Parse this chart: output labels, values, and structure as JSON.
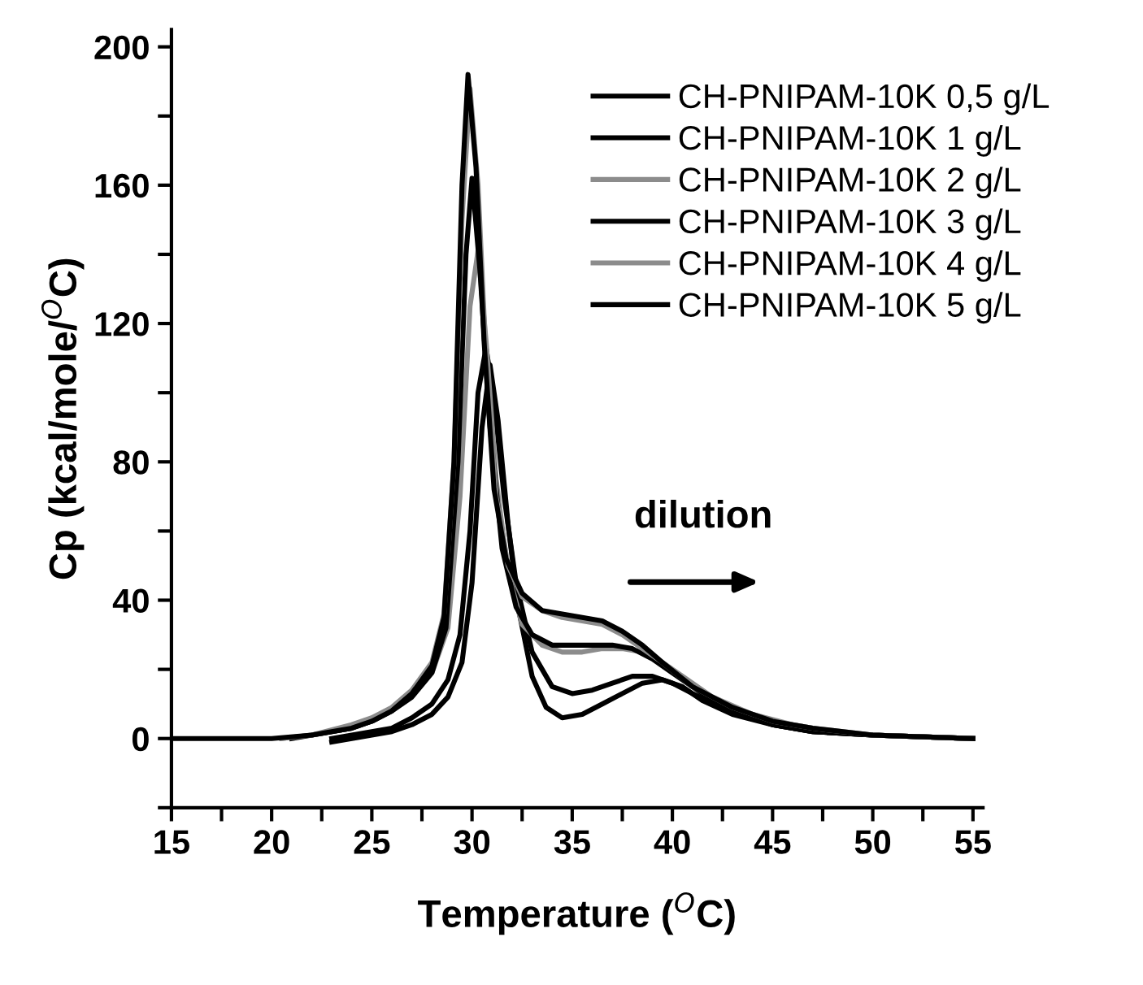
{
  "chart_data": {
    "type": "line",
    "xlabel": "Temperature ($^{O}$C)",
    "ylabel": "Cp (kcal/mole/$^{O}$C)",
    "xlim": [
      15,
      55.5
    ],
    "ylim": [
      -20,
      205
    ],
    "xticks": [
      15,
      {
        "value": 17.5,
        "label": null
      },
      20,
      {
        "value": 22.5,
        "label": null
      },
      25,
      {
        "value": 27.5,
        "label": null
      },
      30,
      {
        "value": 32.5,
        "label": null
      },
      35,
      {
        "value": 37.5,
        "label": null
      },
      40,
      {
        "value": 42.5,
        "label": null
      },
      45,
      {
        "value": 47.5,
        "label": null
      },
      50,
      {
        "value": 52.5,
        "label": null
      },
      55
    ],
    "yticks": [
      {
        "value": -20,
        "label": null
      },
      0,
      {
        "value": 20,
        "label": null
      },
      40,
      {
        "value": 60,
        "label": null
      },
      80,
      {
        "value": 100,
        "label": null
      },
      120,
      {
        "value": 140,
        "label": null
      },
      160,
      {
        "value": 180,
        "label": null
      },
      200
    ],
    "grid": false,
    "legend": "top right",
    "marker": "none",
    "line_style": "solid",
    "annotations": [
      "dilution"
    ],
    "series": [
      {
        "name": "CH-PNIPAM-10K 0,5 g/L",
        "color": "#000000",
        "x": [
          23,
          24,
          25,
          26,
          27,
          28,
          28.8,
          29.5,
          30,
          30.5,
          30.9,
          31.3,
          31.8,
          32.3,
          33,
          33.7,
          34.5,
          35.5,
          36.5,
          37.5,
          38.5,
          39.5,
          40.5,
          41.5,
          43,
          45,
          47,
          50,
          55
        ],
        "values": [
          -1,
          0,
          1,
          2,
          4,
          7,
          12,
          22,
          45,
          90,
          108,
          92,
          62,
          38,
          18,
          9,
          6,
          7,
          10,
          13,
          16,
          17,
          15,
          11,
          7,
          4,
          2,
          1,
          0
        ]
      },
      {
        "name": "CH-PNIPAM-10K 1 g/L",
        "color": "#000000",
        "x": [
          23,
          24,
          25,
          26,
          27,
          28,
          28.8,
          29.4,
          29.9,
          30.3,
          30.7,
          31.1,
          31.6,
          32.2,
          33,
          34,
          35,
          36,
          37,
          38,
          39,
          40,
          41,
          42.5,
          45,
          47,
          50,
          55
        ],
        "values": [
          0,
          1,
          2,
          3,
          6,
          10,
          17,
          30,
          60,
          100,
          113,
          98,
          70,
          45,
          25,
          15,
          13,
          14,
          16,
          18,
          18,
          16,
          13,
          9,
          4,
          2,
          1,
          0
        ]
      },
      {
        "name": "CH-PNIPAM-10K 2 g/L",
        "color": "#8c8c8c",
        "x": [
          20.5,
          22,
          24,
          25,
          26,
          27,
          28,
          28.8,
          29.4,
          29.9,
          30.3,
          30.7,
          31.2,
          31.8,
          32.5,
          33.5,
          34.5,
          35.5,
          36.5,
          37.5,
          38.5,
          39.5,
          40.5,
          42,
          44,
          46,
          48,
          50,
          55
        ],
        "values": [
          0,
          1,
          3,
          5,
          8,
          12,
          19,
          32,
          70,
          125,
          141,
          115,
          75,
          48,
          33,
          27,
          25,
          25,
          26,
          26,
          25,
          22,
          18,
          12,
          7,
          4,
          2,
          1,
          0
        ]
      },
      {
        "name": "CH-PNIPAM-10K 3 g/L",
        "color": "#000000",
        "x": [
          21,
          22,
          24,
          25,
          26,
          27,
          28,
          28.7,
          29.3,
          29.7,
          30,
          30.4,
          30.9,
          31.5,
          32.2,
          33,
          34,
          35,
          36,
          37,
          38,
          39,
          40,
          41.5,
          43,
          45,
          47,
          50,
          55
        ],
        "values": [
          0,
          1,
          3,
          5,
          8,
          12,
          19,
          32,
          80,
          140,
          162,
          135,
          90,
          55,
          38,
          30,
          27,
          27,
          27,
          27,
          26,
          23,
          19,
          13,
          8,
          4,
          2,
          1,
          0
        ]
      },
      {
        "name": "CH-PNIPAM-10K 4 g/L",
        "color": "#8c8c8c",
        "x": [
          20.5,
          22,
          24,
          25,
          26,
          27,
          28,
          28.6,
          29.1,
          29.5,
          29.9,
          30.3,
          30.7,
          31.2,
          31.8,
          32.5,
          33.5,
          34.5,
          35.5,
          36.5,
          37.5,
          38.5,
          39.5,
          41,
          43,
          45,
          47,
          50,
          55
        ],
        "values": [
          0,
          1,
          4,
          6,
          9,
          14,
          22,
          36,
          80,
          150,
          188,
          160,
          110,
          70,
          50,
          41,
          37,
          35,
          34,
          33,
          30,
          26,
          22,
          15,
          9,
          5,
          3,
          1,
          0
        ]
      },
      {
        "name": "CH-PNIPAM-10K 5 g/L",
        "color": "#000000",
        "x": [
          15,
          18,
          20,
          22,
          24,
          25,
          26,
          27,
          28,
          28.6,
          29.1,
          29.5,
          29.8,
          30.2,
          30.6,
          31.1,
          31.7,
          32.5,
          33.5,
          34.5,
          35.5,
          36.5,
          37.5,
          38.5,
          39.5,
          41,
          43,
          45,
          47,
          50,
          55
        ],
        "values": [
          0,
          0,
          0,
          1,
          3,
          5,
          8,
          13,
          21,
          35,
          80,
          160,
          192,
          165,
          115,
          72,
          52,
          42,
          37,
          36,
          35,
          34,
          31,
          27,
          22,
          15,
          9,
          5,
          3,
          1,
          0
        ]
      }
    ]
  }
}
